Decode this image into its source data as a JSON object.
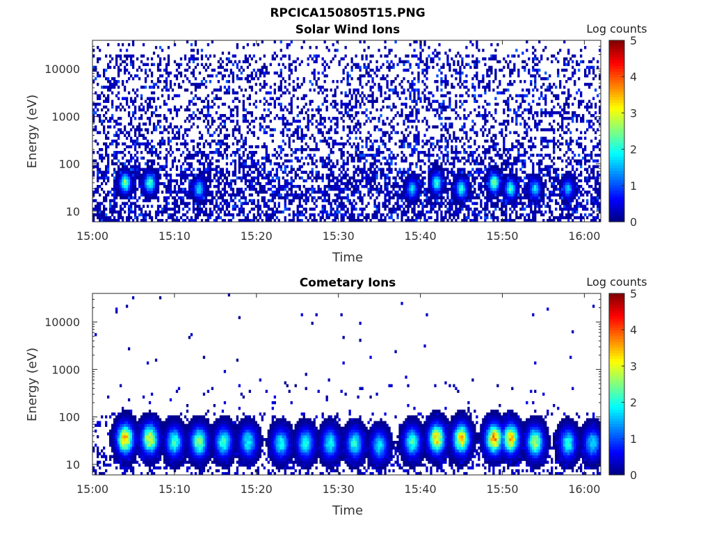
{
  "figure": {
    "title": "RPCICA150805T15.PNG"
  },
  "chart_data": [
    {
      "type": "heatmap",
      "title": "Solar Wind Ions",
      "xlabel": "Time",
      "ylabel": "Energy (eV)",
      "x_ticks": [
        "15:00",
        "15:10",
        "15:20",
        "15:30",
        "15:40",
        "15:50",
        "16:00"
      ],
      "xlim": [
        "15:00",
        "16:02"
      ],
      "y_scale": "log",
      "y_ticks": [
        "10",
        "100",
        "1000",
        "10000"
      ],
      "ylim": [
        6,
        40000
      ],
      "colorbar": {
        "label": "Log counts",
        "range": [
          0,
          5
        ],
        "ticks": [
          "0",
          "1",
          "2",
          "3",
          "4",
          "5"
        ]
      },
      "colormap": "jet",
      "description_of_content": "sparse low counts (log 0-1) across all energies; brighter patches (log 2-3) near 20-60 eV",
      "bright_patches": [
        {
          "time": "15:04",
          "energy_eV": 40,
          "log_counts": 3.0
        },
        {
          "time": "15:07",
          "energy_eV": 40,
          "log_counts": 2.8
        },
        {
          "time": "15:13",
          "energy_eV": 30,
          "log_counts": 2.0
        },
        {
          "time": "15:39",
          "energy_eV": 30,
          "log_counts": 2.0
        },
        {
          "time": "15:42",
          "energy_eV": 40,
          "log_counts": 2.5
        },
        {
          "time": "15:45",
          "energy_eV": 30,
          "log_counts": 2.5
        },
        {
          "time": "15:49",
          "energy_eV": 40,
          "log_counts": 3.0
        },
        {
          "time": "15:51",
          "energy_eV": 30,
          "log_counts": 2.5
        },
        {
          "time": "15:54",
          "energy_eV": 30,
          "log_counts": 2.0
        },
        {
          "time": "15:58",
          "energy_eV": 30,
          "log_counts": 1.8
        }
      ]
    },
    {
      "type": "heatmap",
      "title": "Cometary Ions",
      "xlabel": "Time",
      "ylabel": "Energy (eV)",
      "x_ticks": [
        "15:00",
        "15:10",
        "15:20",
        "15:30",
        "15:40",
        "15:50",
        "16:00"
      ],
      "xlim": [
        "15:00",
        "16:02"
      ],
      "y_scale": "log",
      "y_ticks": [
        "10",
        "100",
        "1000",
        "10000"
      ],
      "ylim": [
        6,
        40000
      ],
      "colorbar": {
        "label": "Log counts",
        "range": [
          0,
          5
        ],
        "ticks": [
          "0",
          "1",
          "2",
          "3",
          "4",
          "5"
        ]
      },
      "colormap": "jet",
      "description_of_content": "ion bursts concentrated around 15-60 eV with peaks up to log 4; sparse isolated counts at high energies",
      "bursts": [
        {
          "time": "15:04",
          "energy_eV": 35,
          "log_counts": 4.0
        },
        {
          "time": "15:07",
          "energy_eV": 35,
          "log_counts": 3.5
        },
        {
          "time": "15:10",
          "energy_eV": 30,
          "log_counts": 2.5
        },
        {
          "time": "15:13",
          "energy_eV": 30,
          "log_counts": 3.0
        },
        {
          "time": "15:16",
          "energy_eV": 30,
          "log_counts": 2.5
        },
        {
          "time": "15:19",
          "energy_eV": 30,
          "log_counts": 2.2
        },
        {
          "time": "15:23",
          "energy_eV": 28,
          "log_counts": 2.2
        },
        {
          "time": "15:26",
          "energy_eV": 28,
          "log_counts": 2.3
        },
        {
          "time": "15:29",
          "energy_eV": 28,
          "log_counts": 2.2
        },
        {
          "time": "15:32",
          "energy_eV": 28,
          "log_counts": 2.3
        },
        {
          "time": "15:35",
          "energy_eV": 25,
          "log_counts": 2.0
        },
        {
          "time": "15:39",
          "energy_eV": 30,
          "log_counts": 2.5
        },
        {
          "time": "15:42",
          "energy_eV": 35,
          "log_counts": 3.8
        },
        {
          "time": "15:45",
          "energy_eV": 35,
          "log_counts": 3.8
        },
        {
          "time": "15:49",
          "energy_eV": 35,
          "log_counts": 4.2
        },
        {
          "time": "15:51",
          "energy_eV": 35,
          "log_counts": 3.8
        },
        {
          "time": "15:54",
          "energy_eV": 30,
          "log_counts": 3.2
        },
        {
          "time": "15:58",
          "energy_eV": 28,
          "log_counts": 2.3
        },
        {
          "time": "16:01",
          "energy_eV": 28,
          "log_counts": 2.0
        }
      ]
    }
  ]
}
